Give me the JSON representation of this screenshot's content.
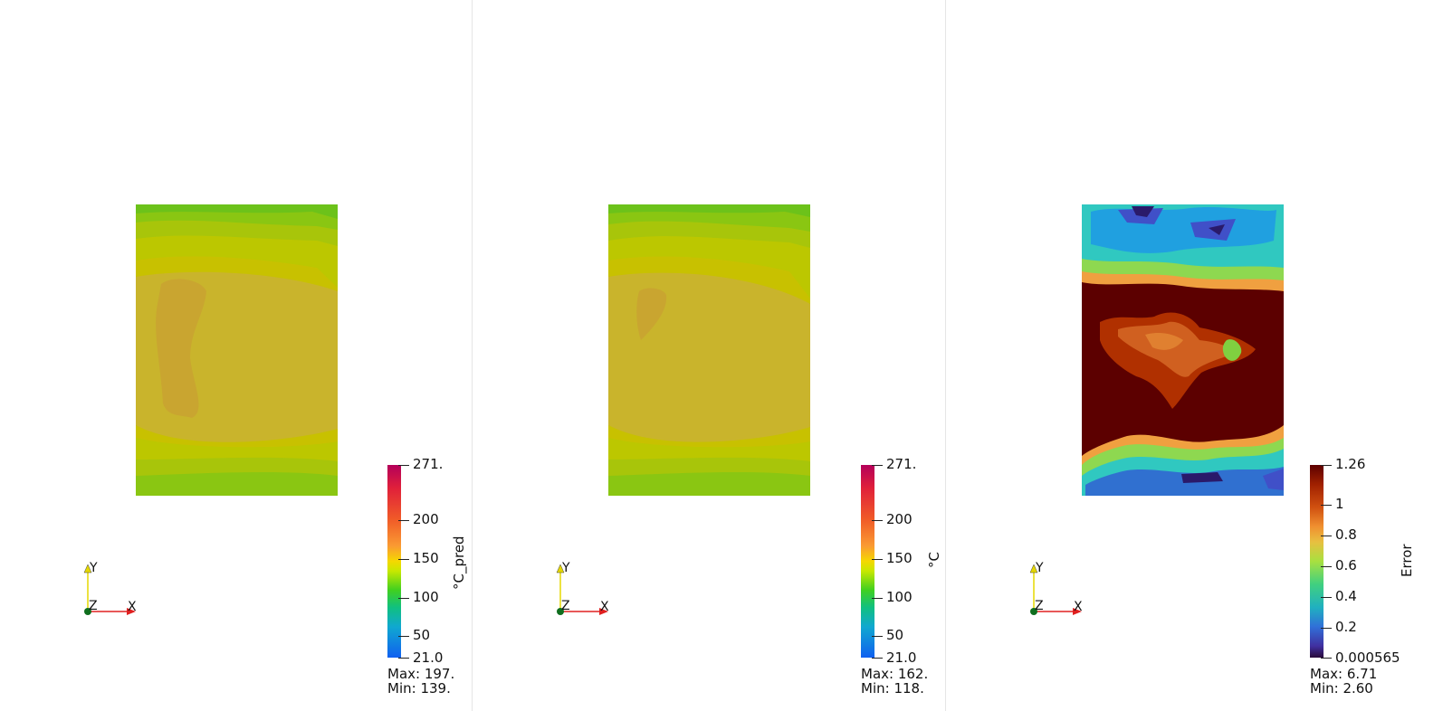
{
  "panels": [
    {
      "id": "predicted",
      "colorbar": {
        "title": "°C_pred",
        "ticks": [
          "271.",
          "200",
          "150",
          "100",
          "50",
          "21.0"
        ],
        "max_label": "Max: 197.",
        "min_label": "Min: 139."
      },
      "axes": {
        "y": "Y",
        "z": "Z",
        "x": "X"
      }
    },
    {
      "id": "actual",
      "colorbar": {
        "title": "°C",
        "ticks": [
          "271.",
          "200",
          "150",
          "100",
          "50",
          "21.0"
        ],
        "max_label": "Max: 162.",
        "min_label": "Min: 118."
      },
      "axes": {
        "y": "Y",
        "z": "Z",
        "x": "X"
      }
    },
    {
      "id": "error",
      "colorbar": {
        "title": "Error",
        "ticks": [
          "1.26",
          "1",
          "0.8",
          "0.6",
          "0.4",
          "0.2",
          "0.000565"
        ],
        "max_label": "Max: 6.71",
        "min_label": "Min: 2.60"
      },
      "axes": {
        "y": "Y",
        "z": "Z",
        "x": "X"
      }
    }
  ],
  "colors": {
    "temp_green": "#6cc21a",
    "temp_yellow": "#c8c800",
    "temp_olive": "#c9b42c",
    "error_dark_red": "#5c0000",
    "axis_x": "#e02020",
    "axis_y": "#e6d800",
    "axis_origin": "#0f6e1e"
  }
}
